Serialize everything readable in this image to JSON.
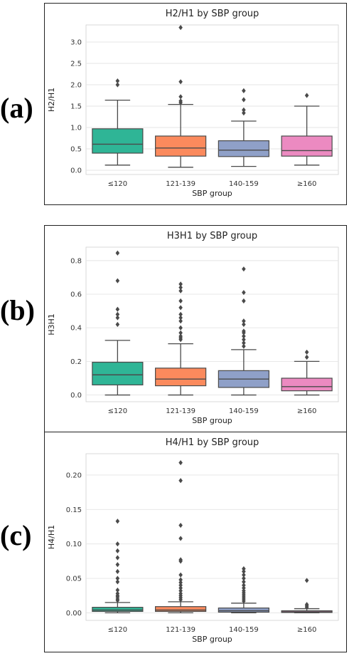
{
  "panels": [
    {
      "letter": "(a)"
    },
    {
      "letter": "(b)"
    },
    {
      "letter": "(c)"
    }
  ],
  "colors": {
    "g1": "#2fb596",
    "g2": "#fb8a5d",
    "g3": "#8fa0c8",
    "g4": "#ec8ac1"
  },
  "chart_data": [
    {
      "type": "box",
      "title": "H2/H1 by SBP group",
      "xlabel": "SBP group",
      "ylabel": "H2/H1",
      "categories": [
        "≤120",
        "121-139",
        "140-159",
        "≥160"
      ],
      "ylim": [
        -0.1,
        3.4
      ],
      "yticks": [
        0.0,
        0.5,
        1.0,
        1.5,
        2.0,
        2.5,
        3.0
      ],
      "tick_labels": [
        "0.0",
        "0.5",
        "1.0",
        "1.5",
        "2.0",
        "2.5",
        "3.0"
      ],
      "grid": true,
      "boxes": [
        {
          "whislo": 0.12,
          "q1": 0.4,
          "med": 0.61,
          "q3": 0.97,
          "whishi": 1.64,
          "fliers": [
            2.0,
            2.09
          ]
        },
        {
          "whislo": 0.07,
          "q1": 0.33,
          "med": 0.52,
          "q3": 0.8,
          "whishi": 1.54,
          "fliers": [
            1.58,
            1.62,
            1.72,
            2.07,
            3.34
          ]
        },
        {
          "whislo": 0.09,
          "q1": 0.32,
          "med": 0.47,
          "q3": 0.69,
          "whishi": 1.15,
          "fliers": [
            1.34,
            1.41,
            1.65,
            1.86
          ]
        },
        {
          "whislo": 0.12,
          "q1": 0.33,
          "med": 0.46,
          "q3": 0.8,
          "whishi": 1.5,
          "fliers": [
            1.75
          ]
        }
      ]
    },
    {
      "type": "box",
      "title": "H3H1 by SBP group",
      "xlabel": "SBP group",
      "ylabel": "H3H1",
      "categories": [
        "≤120",
        "121-139",
        "140-159",
        "≥160"
      ],
      "ylim": [
        -0.04,
        0.88
      ],
      "yticks": [
        0.0,
        0.2,
        0.4,
        0.6,
        0.8
      ],
      "tick_labels": [
        "0.0",
        "0.2",
        "0.4",
        "0.6",
        "0.8"
      ],
      "grid": true,
      "boxes": [
        {
          "whislo": 0.0,
          "q1": 0.06,
          "med": 0.12,
          "q3": 0.195,
          "whishi": 0.325,
          "fliers": [
            0.42,
            0.46,
            0.48,
            0.51,
            0.68,
            0.845
          ]
        },
        {
          "whislo": 0.0,
          "q1": 0.055,
          "med": 0.095,
          "q3": 0.16,
          "whishi": 0.305,
          "fliers": [
            0.33,
            0.34,
            0.35,
            0.37,
            0.4,
            0.44,
            0.46,
            0.48,
            0.52,
            0.56,
            0.62,
            0.64,
            0.66
          ]
        },
        {
          "whislo": 0.0,
          "q1": 0.045,
          "med": 0.095,
          "q3": 0.145,
          "whishi": 0.27,
          "fliers": [
            0.29,
            0.31,
            0.33,
            0.35,
            0.37,
            0.38,
            0.42,
            0.44,
            0.56,
            0.61,
            0.75
          ]
        },
        {
          "whislo": 0.0,
          "q1": 0.025,
          "med": 0.05,
          "q3": 0.1,
          "whishi": 0.2,
          "fliers": [
            0.225,
            0.255
          ]
        }
      ]
    },
    {
      "type": "box",
      "title": "H4/H1 by SBP group",
      "xlabel": "SBP group",
      "ylabel": "H4/H1",
      "categories": [
        "≤120",
        "121-139",
        "140-159",
        "≥160"
      ],
      "ylim": [
        -0.011,
        0.231
      ],
      "yticks": [
        0.0,
        0.05,
        0.1,
        0.15,
        0.2
      ],
      "tick_labels": [
        "0.00",
        "0.05",
        "0.10",
        "0.15",
        "0.20"
      ],
      "grid": true,
      "boxes": [
        {
          "whislo": 0.0,
          "q1": 0.002,
          "med": 0.004,
          "q3": 0.008,
          "whishi": 0.015,
          "fliers": [
            0.018,
            0.02,
            0.023,
            0.025,
            0.028,
            0.033,
            0.045,
            0.05,
            0.06,
            0.07,
            0.08,
            0.09,
            0.1,
            0.133
          ]
        },
        {
          "whislo": 0.0,
          "q1": 0.002,
          "med": 0.004,
          "q3": 0.009,
          "whishi": 0.016,
          "fliers": [
            0.019,
            0.022,
            0.025,
            0.028,
            0.032,
            0.036,
            0.04,
            0.044,
            0.048,
            0.055,
            0.075,
            0.077,
            0.108,
            0.127,
            0.192,
            0.218
          ]
        },
        {
          "whislo": 0.0,
          "q1": 0.001,
          "med": 0.003,
          "q3": 0.007,
          "whishi": 0.014,
          "fliers": [
            0.017,
            0.02,
            0.023,
            0.026,
            0.029,
            0.032,
            0.036,
            0.04,
            0.045,
            0.05,
            0.055,
            0.06,
            0.064
          ]
        },
        {
          "whislo": 0.0,
          "q1": 0.0005,
          "med": 0.0015,
          "q3": 0.003,
          "whishi": 0.006,
          "fliers": [
            0.008,
            0.01,
            0.012,
            0.047
          ]
        }
      ]
    }
  ]
}
